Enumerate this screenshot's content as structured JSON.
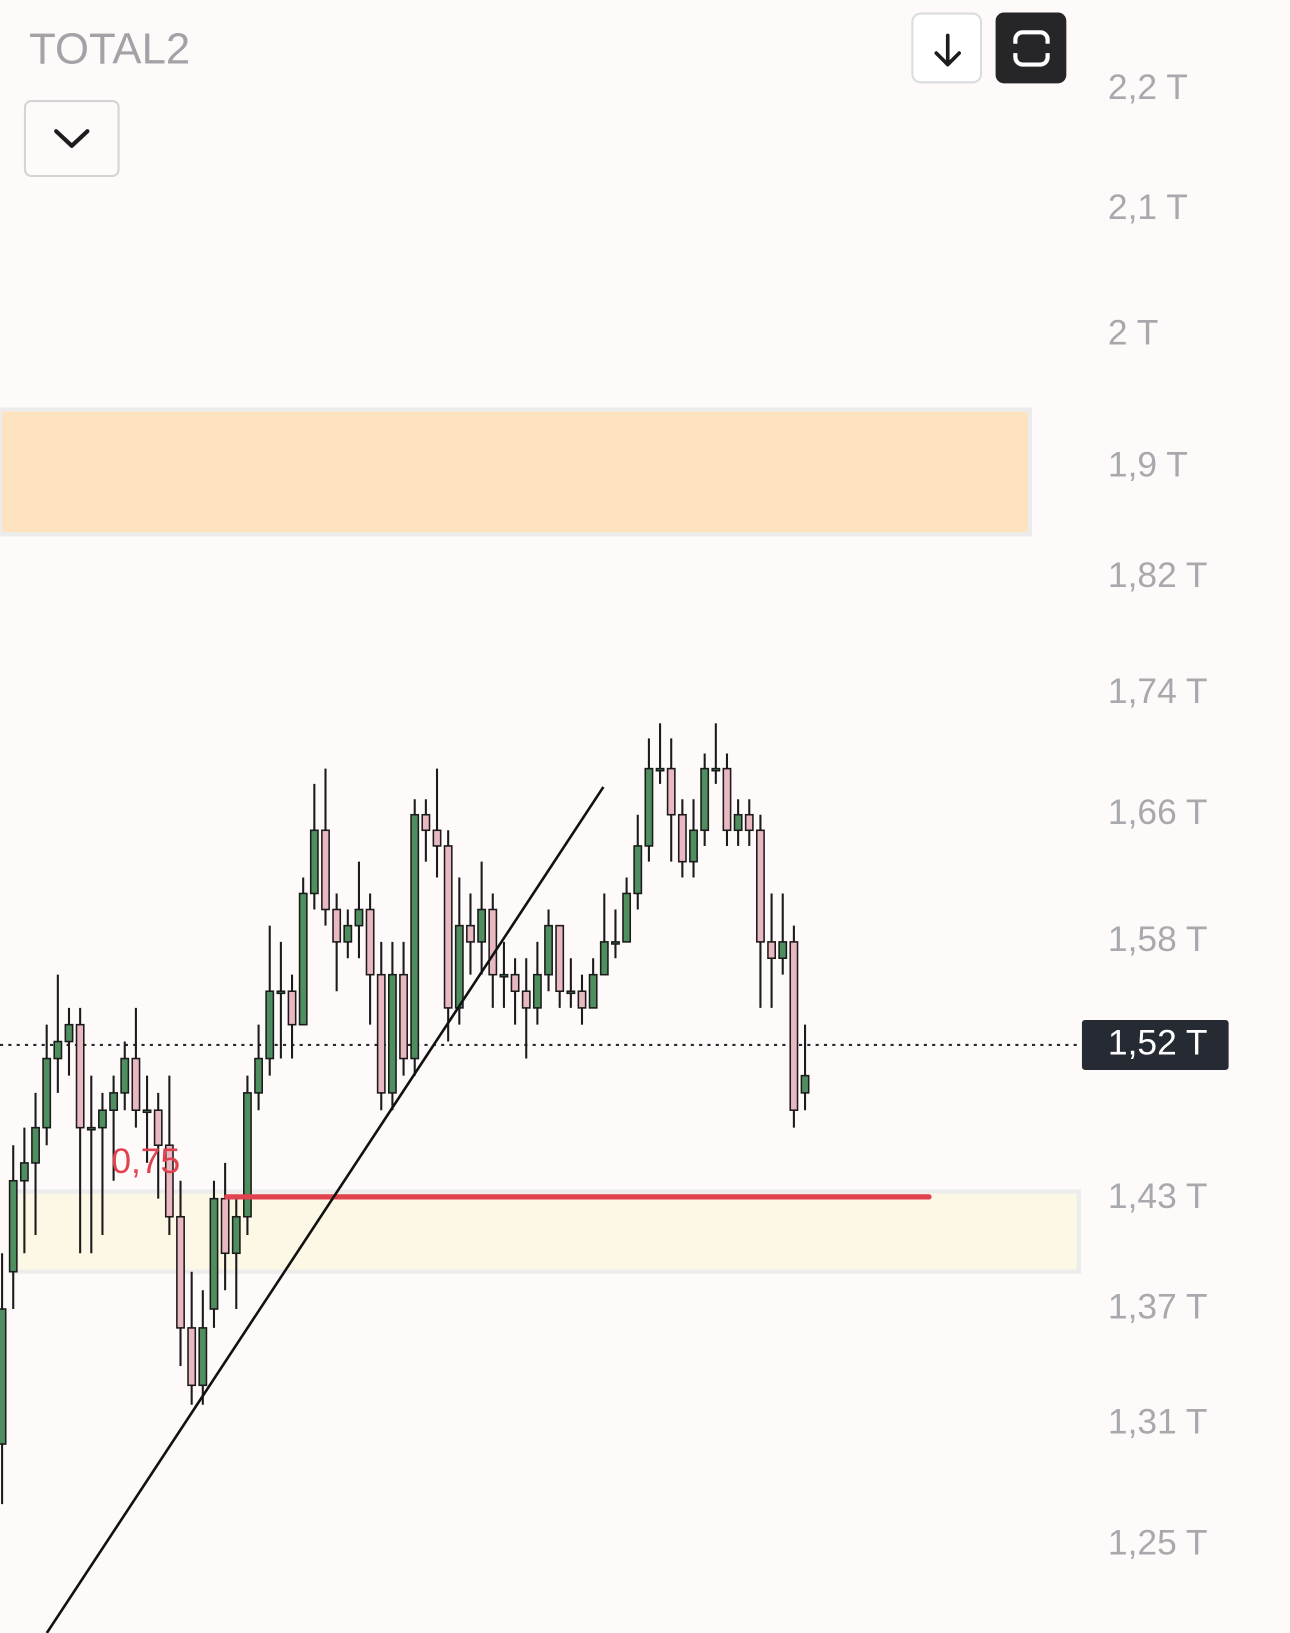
{
  "chart_data": {
    "type": "candlestick",
    "title": "TOTAL2",
    "log_scale": true,
    "ylim": [
      1.208,
      2.278
    ],
    "yticks": [
      {
        "value": 2.2,
        "label": "2,2 T"
      },
      {
        "value": 2.1,
        "label": "2,1 T"
      },
      {
        "value": 2,
        "label": "2 T"
      },
      {
        "value": 1.9,
        "label": "1,9 T"
      },
      {
        "value": 1.82,
        "label": "1,82 T"
      },
      {
        "value": 1.74,
        "label": "1,74 T"
      },
      {
        "value": 1.66,
        "label": "1,66 T"
      },
      {
        "value": 1.58,
        "label": "1,58 T"
      },
      {
        "value": 1.43,
        "label": "1,43 T"
      },
      {
        "value": 1.37,
        "label": "1,37 T"
      },
      {
        "value": 1.31,
        "label": "1,31 T"
      },
      {
        "value": 1.25,
        "label": "1,25 T"
      }
    ],
    "up_color": "#4f8f5f",
    "down_color": "#e9b8c0",
    "open": [
      1.3,
      1.39,
      1.44,
      1.45,
      1.47,
      1.51,
      1.52,
      1.53,
      1.47,
      1.47,
      1.48,
      1.49,
      1.51,
      1.48,
      1.48,
      1.46,
      1.42,
      1.36,
      1.33,
      1.37,
      1.43,
      1.4,
      1.42,
      1.49,
      1.51,
      1.55,
      1.55,
      1.53,
      1.61,
      1.65,
      1.6,
      1.58,
      1.59,
      1.6,
      1.56,
      1.49,
      1.56,
      1.51,
      1.66,
      1.65,
      1.64,
      1.54,
      1.59,
      1.58,
      1.6,
      1.56,
      1.56,
      1.55,
      1.54,
      1.56,
      1.59,
      1.55,
      1.55,
      1.54,
      1.56,
      1.58,
      1.58,
      1.61,
      1.64,
      1.69,
      1.69,
      1.66,
      1.63,
      1.65,
      1.69,
      1.69,
      1.65,
      1.66,
      1.65,
      1.58,
      1.57,
      1.58,
      1.49
    ],
    "high": [
      1.4,
      1.46,
      1.47,
      1.49,
      1.53,
      1.56,
      1.54,
      1.54,
      1.5,
      1.49,
      1.5,
      1.52,
      1.54,
      1.5,
      1.49,
      1.5,
      1.44,
      1.39,
      1.38,
      1.44,
      1.45,
      1.43,
      1.5,
      1.53,
      1.59,
      1.58,
      1.56,
      1.62,
      1.68,
      1.69,
      1.61,
      1.6,
      1.63,
      1.61,
      1.58,
      1.58,
      1.58,
      1.67,
      1.67,
      1.69,
      1.65,
      1.62,
      1.61,
      1.63,
      1.61,
      1.58,
      1.57,
      1.57,
      1.58,
      1.6,
      1.59,
      1.57,
      1.56,
      1.57,
      1.61,
      1.6,
      1.62,
      1.66,
      1.71,
      1.72,
      1.71,
      1.67,
      1.67,
      1.7,
      1.72,
      1.7,
      1.67,
      1.67,
      1.66,
      1.61,
      1.61,
      1.59,
      1.53
    ],
    "low": [
      1.27,
      1.37,
      1.4,
      1.41,
      1.46,
      1.49,
      1.5,
      1.4,
      1.4,
      1.41,
      1.44,
      1.48,
      1.47,
      1.45,
      1.43,
      1.41,
      1.34,
      1.32,
      1.32,
      1.36,
      1.38,
      1.37,
      1.41,
      1.48,
      1.5,
      1.51,
      1.51,
      1.53,
      1.6,
      1.59,
      1.55,
      1.57,
      1.57,
      1.53,
      1.48,
      1.48,
      1.5,
      1.5,
      1.63,
      1.62,
      1.52,
      1.53,
      1.56,
      1.56,
      1.54,
      1.54,
      1.53,
      1.51,
      1.53,
      1.55,
      1.54,
      1.54,
      1.53,
      1.54,
      1.56,
      1.57,
      1.58,
      1.6,
      1.63,
      1.68,
      1.63,
      1.62,
      1.62,
      1.64,
      1.68,
      1.64,
      1.64,
      1.64,
      1.54,
      1.54,
      1.56,
      1.47,
      1.48
    ],
    "close": [
      1.37,
      1.44,
      1.45,
      1.47,
      1.51,
      1.52,
      1.53,
      1.47,
      1.47,
      1.48,
      1.49,
      1.51,
      1.48,
      1.48,
      1.46,
      1.42,
      1.36,
      1.33,
      1.36,
      1.43,
      1.4,
      1.42,
      1.49,
      1.51,
      1.55,
      1.55,
      1.53,
      1.61,
      1.65,
      1.6,
      1.58,
      1.59,
      1.6,
      1.56,
      1.49,
      1.56,
      1.51,
      1.66,
      1.65,
      1.64,
      1.54,
      1.59,
      1.58,
      1.6,
      1.56,
      1.56,
      1.55,
      1.54,
      1.56,
      1.59,
      1.55,
      1.55,
      1.54,
      1.56,
      1.58,
      1.58,
      1.61,
      1.64,
      1.69,
      1.69,
      1.66,
      1.63,
      1.65,
      1.69,
      1.69,
      1.65,
      1.66,
      1.65,
      1.58,
      1.57,
      1.58,
      1.48,
      1.5
    ],
    "zones": [
      {
        "low": 1.851,
        "high": 1.943,
        "color": "#fde3bf"
      },
      {
        "low": 1.39,
        "high": 1.434,
        "color": "#fdf7e6"
      }
    ],
    "level": {
      "value": 1.431,
      "label": "0,75",
      "color": "#e0424f"
    },
    "trendline": {
      "start": 1.208,
      "end": 1.678
    },
    "current_price": {
      "value": 1.518,
      "label": "1,52 T"
    }
  }
}
